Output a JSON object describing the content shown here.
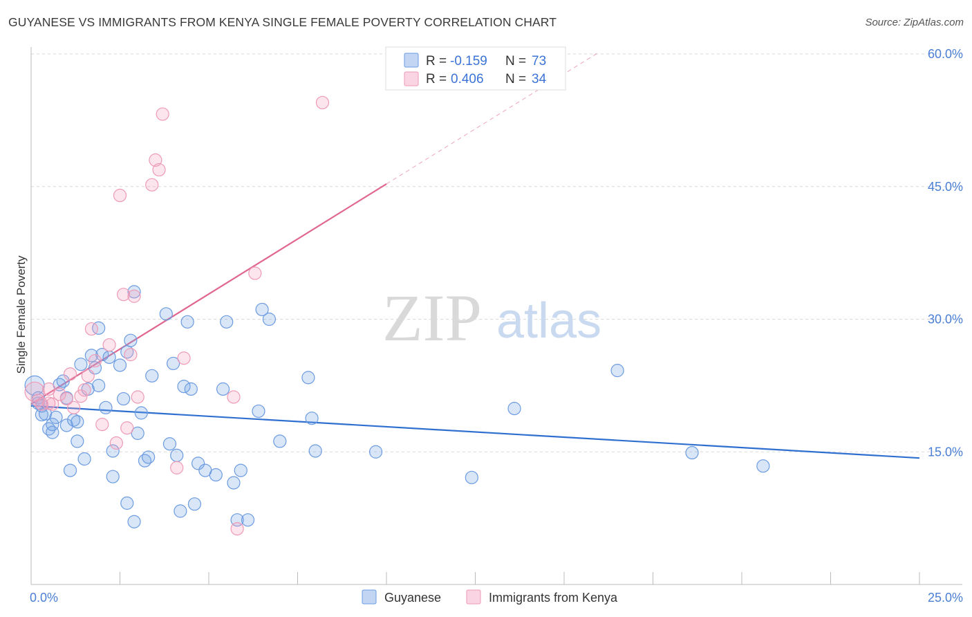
{
  "title": "GUYANESE VS IMMIGRANTS FROM KENYA SINGLE FEMALE POVERTY CORRELATION CHART",
  "source": "Source: ZipAtlas.com",
  "watermark": {
    "zip": "ZIP",
    "atlas": "atlas"
  },
  "colors": {
    "blue_fill": "rgba(120,165,230,0.28)",
    "blue_stroke": "#6b9be0",
    "blue_line": "#2f6fd0",
    "pink_fill": "rgba(245,160,190,0.28)",
    "pink_stroke": "#ee9ab6",
    "pink_line": "#e0668f",
    "grid": "#d8d8d8",
    "tick_text": "#4a7fd4"
  },
  "legend": {
    "r_label": "R =",
    "n_label": "N =",
    "items": [
      {
        "series": "Guyanese",
        "r": "-0.159",
        "n": "73"
      },
      {
        "series": "Immigrants from Kenya",
        "r": "0.406",
        "n": "34"
      }
    ]
  },
  "chart_data": {
    "type": "scatter",
    "title": "GUYANESE VS IMMIGRANTS FROM KENYA SINGLE FEMALE POVERTY CORRELATION CHART",
    "xlabel": "",
    "ylabel": "Single Female Poverty",
    "xlim": [
      0,
      25
    ],
    "ylim": [
      0,
      60
    ],
    "x_tick_labels": [
      "0.0%",
      "25.0%"
    ],
    "y_ticks": [
      15,
      30,
      45,
      60
    ],
    "y_tick_labels": [
      "15.0%",
      "30.0%",
      "45.0%",
      "60.0%"
    ],
    "legend_position": "top-center",
    "series": [
      {
        "name": "Guyanese",
        "r": -0.159,
        "n": 73,
        "trend": {
          "x0": 0,
          "y0": 20.2,
          "x1": 25,
          "y1": 14.3,
          "dashed_to": 25
        },
        "points": [
          [
            0.1,
            22.5
          ],
          [
            0.2,
            21.1
          ],
          [
            0.2,
            20.5
          ],
          [
            0.3,
            20.2
          ],
          [
            0.3,
            19.2
          ],
          [
            0.4,
            19.3
          ],
          [
            0.5,
            17.6
          ],
          [
            0.6,
            17.2
          ],
          [
            0.6,
            18.1
          ],
          [
            0.7,
            18.9
          ],
          [
            0.8,
            22.6
          ],
          [
            0.9,
            23.0
          ],
          [
            1.0,
            18.0
          ],
          [
            1.0,
            21.1
          ],
          [
            1.1,
            12.9
          ],
          [
            1.2,
            18.6
          ],
          [
            1.3,
            16.2
          ],
          [
            1.3,
            18.4
          ],
          [
            1.4,
            24.9
          ],
          [
            1.5,
            14.2
          ],
          [
            1.6,
            22.1
          ],
          [
            1.7,
            25.9
          ],
          [
            1.8,
            24.5
          ],
          [
            1.9,
            29.0
          ],
          [
            1.9,
            22.5
          ],
          [
            2.0,
            26.0
          ],
          [
            2.1,
            20.0
          ],
          [
            2.2,
            25.7
          ],
          [
            2.3,
            12.2
          ],
          [
            2.3,
            15.1
          ],
          [
            2.5,
            24.8
          ],
          [
            2.6,
            21.0
          ],
          [
            2.7,
            26.3
          ],
          [
            2.7,
            9.2
          ],
          [
            2.8,
            27.6
          ],
          [
            2.9,
            33.1
          ],
          [
            2.9,
            7.1
          ],
          [
            3.0,
            17.1
          ],
          [
            3.1,
            19.4
          ],
          [
            3.2,
            14.0
          ],
          [
            3.3,
            14.4
          ],
          [
            3.4,
            23.6
          ],
          [
            3.8,
            30.6
          ],
          [
            3.9,
            15.9
          ],
          [
            4.0,
            25.0
          ],
          [
            4.1,
            14.6
          ],
          [
            4.2,
            8.3
          ],
          [
            4.3,
            22.4
          ],
          [
            4.4,
            29.7
          ],
          [
            4.5,
            22.1
          ],
          [
            4.6,
            9.1
          ],
          [
            4.7,
            13.7
          ],
          [
            4.9,
            12.9
          ],
          [
            5.2,
            12.4
          ],
          [
            5.4,
            22.1
          ],
          [
            5.5,
            29.7
          ],
          [
            5.7,
            11.5
          ],
          [
            5.8,
            7.3
          ],
          [
            5.9,
            12.9
          ],
          [
            6.1,
            7.3
          ],
          [
            6.4,
            19.6
          ],
          [
            6.5,
            31.1
          ],
          [
            6.7,
            30.0
          ],
          [
            7.0,
            16.2
          ],
          [
            7.8,
            23.4
          ],
          [
            7.9,
            18.8
          ],
          [
            8.0,
            15.1
          ],
          [
            9.7,
            15.0
          ],
          [
            12.4,
            12.1
          ],
          [
            13.6,
            19.9
          ],
          [
            16.5,
            24.2
          ],
          [
            18.6,
            14.9
          ],
          [
            20.6,
            13.4
          ]
        ]
      },
      {
        "name": "Immigrants from Kenya",
        "r": 0.406,
        "n": 34,
        "trend": {
          "x0": 0,
          "y0": 20.4,
          "x1": 10,
          "y1": 45.3,
          "dashed_to": 16
        },
        "points": [
          [
            0.1,
            21.8
          ],
          [
            0.2,
            20.8
          ],
          [
            0.3,
            20.4
          ],
          [
            0.5,
            22.1
          ],
          [
            0.5,
            20.5
          ],
          [
            0.6,
            20.4
          ],
          [
            0.8,
            21.5
          ],
          [
            1.0,
            21.0
          ],
          [
            1.1,
            23.8
          ],
          [
            1.2,
            20.0
          ],
          [
            1.4,
            21.3
          ],
          [
            1.5,
            22.0
          ],
          [
            1.6,
            23.6
          ],
          [
            1.7,
            28.9
          ],
          [
            1.8,
            25.3
          ],
          [
            2.0,
            18.1
          ],
          [
            2.2,
            27.1
          ],
          [
            2.4,
            16.0
          ],
          [
            2.5,
            44.0
          ],
          [
            2.6,
            32.8
          ],
          [
            2.7,
            17.7
          ],
          [
            2.8,
            26.0
          ],
          [
            2.9,
            32.6
          ],
          [
            3.0,
            21.2
          ],
          [
            3.4,
            45.2
          ],
          [
            3.5,
            48.0
          ],
          [
            3.6,
            46.9
          ],
          [
            3.7,
            53.2
          ],
          [
            4.1,
            13.2
          ],
          [
            4.3,
            25.6
          ],
          [
            5.7,
            21.2
          ],
          [
            5.8,
            6.3
          ],
          [
            6.3,
            35.2
          ],
          [
            8.2,
            54.5
          ]
        ]
      }
    ]
  }
}
